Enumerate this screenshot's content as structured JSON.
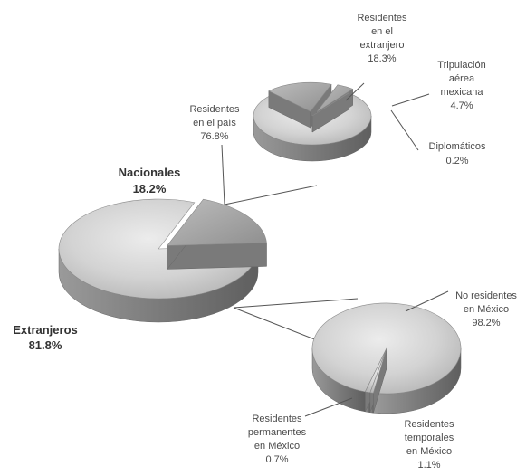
{
  "chart_data": [
    {
      "type": "pie",
      "slices": [
        {
          "label": "Nacionales",
          "value": 18.2,
          "exploded": true
        },
        {
          "label": "Extranjeros",
          "value": 81.8
        }
      ]
    },
    {
      "type": "pie",
      "slices": [
        {
          "label": "Residentes en el país",
          "value": 76.8
        },
        {
          "label": "Residentes en el extranjero",
          "value": 18.3,
          "exploded": true
        },
        {
          "label": "Tripulación aérea mexicana",
          "value": 4.7,
          "exploded": true
        },
        {
          "label": "Diplomáticos",
          "value": 0.2
        }
      ]
    },
    {
      "type": "pie",
      "slices": [
        {
          "label": "No residentes en México",
          "value": 98.2
        },
        {
          "label": "Residentes temporales en México",
          "value": 1.1
        },
        {
          "label": "Residentes permanentes en México",
          "value": 0.7
        }
      ]
    }
  ],
  "labels": {
    "nacionales": {
      "name": "Nacionales",
      "pct": "18.2%"
    },
    "extranjeros": {
      "name": "Extranjeros",
      "pct": "81.8%"
    },
    "res_extranjero": {
      "lines": [
        "Residentes",
        "en el",
        "extranjero"
      ],
      "pct": "18.3%"
    },
    "tripulacion": {
      "lines": [
        "Tripulación",
        "aérea",
        "mexicana"
      ],
      "pct": "4.7%"
    },
    "res_pais": {
      "lines": [
        "Residentes",
        "en el país"
      ],
      "pct": "76.8%"
    },
    "diplomaticos": {
      "lines": [
        "Diplomáticos"
      ],
      "pct": "0.2%"
    },
    "no_residentes": {
      "lines": [
        "No residentes",
        "en México"
      ],
      "pct": "98.2%"
    },
    "res_permanentes": {
      "lines": [
        "Residentes",
        "permanentes",
        "en México"
      ],
      "pct": "0.7%"
    },
    "res_temporales": {
      "lines": [
        "Residentes",
        "temporales",
        "en México"
      ],
      "pct": "1.1%"
    }
  },
  "colors": {
    "top_light": "#e4e4e4",
    "top_mid": "#c9c9c9",
    "top_dark": "#a6a6a6",
    "side": "#8c8c8c",
    "side_dark": "#6d6d6d",
    "line": "#555555"
  }
}
